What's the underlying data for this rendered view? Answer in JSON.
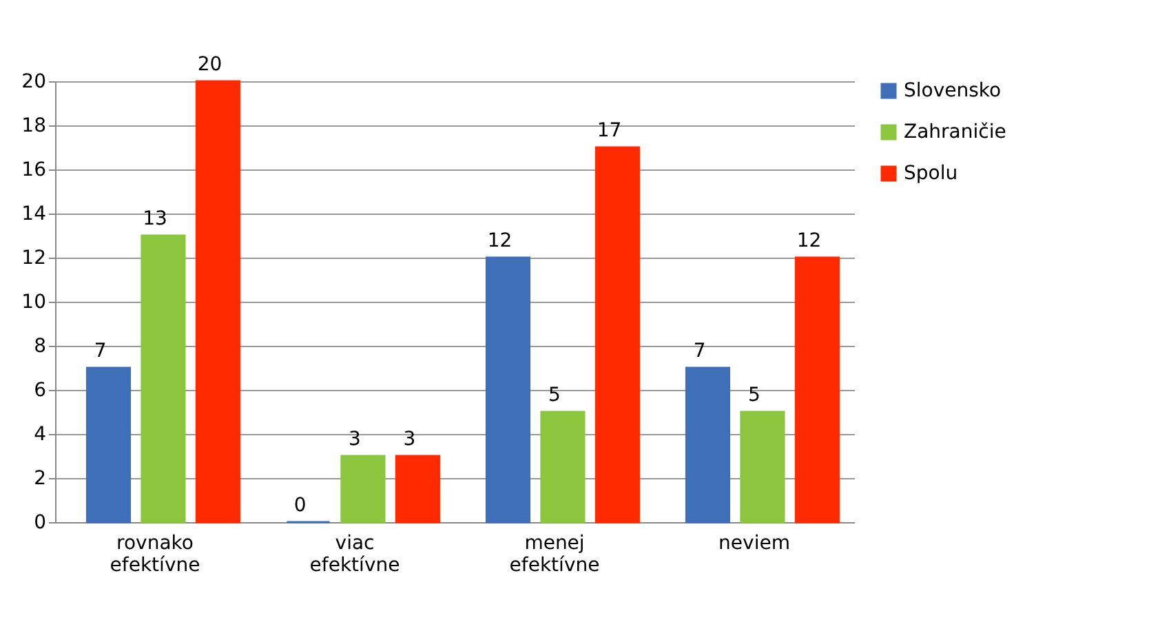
{
  "chart_data": {
    "type": "bar",
    "categories": [
      "rovnako efektívne",
      "viac efektívne",
      "menej efektívne",
      "neviem"
    ],
    "series": [
      {
        "name": "Slovensko",
        "color": "#3f6fb8",
        "values": [
          7,
          0,
          12,
          7
        ]
      },
      {
        "name": "Zahraničie",
        "color": "#8cc63f",
        "values": [
          13,
          3,
          5,
          5
        ]
      },
      {
        "name": "Spolu",
        "color": "#ff2a00",
        "values": [
          20,
          3,
          17,
          12
        ]
      }
    ],
    "ylim": [
      0,
      20
    ],
    "yticks": [
      0,
      2,
      4,
      6,
      8,
      10,
      12,
      14,
      16,
      18,
      20
    ],
    "grid": "y",
    "legend": "right",
    "data_labels": true
  }
}
